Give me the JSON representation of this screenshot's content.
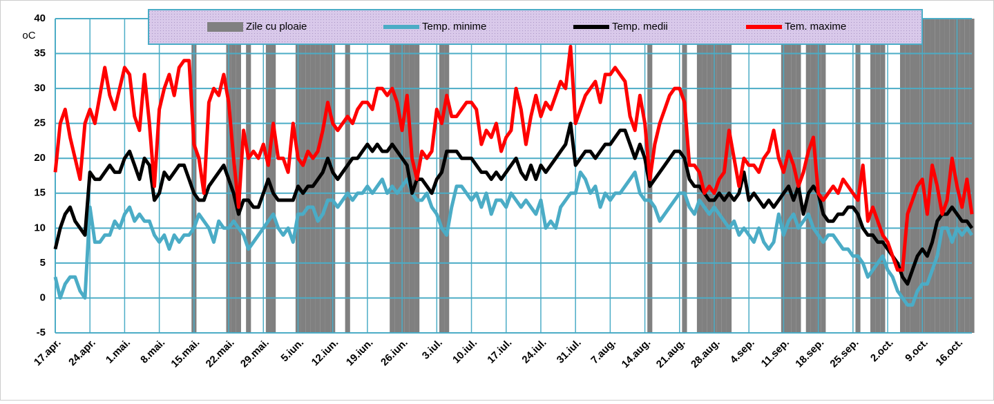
{
  "chart_data": {
    "type": "line",
    "y_label": "oC",
    "ylim": [
      -5,
      40
    ],
    "yticks": [
      -5,
      0,
      5,
      10,
      15,
      20,
      25,
      30,
      35,
      40
    ],
    "grid": true,
    "legend": "top",
    "categories": [
      "17.apr.",
      null,
      null,
      null,
      null,
      null,
      null,
      "24.apr.",
      null,
      null,
      null,
      null,
      null,
      null,
      "1.mai.",
      null,
      null,
      null,
      null,
      null,
      null,
      "8.mai.",
      null,
      null,
      null,
      null,
      null,
      null,
      "15.mai.",
      null,
      null,
      null,
      null,
      null,
      null,
      "22.mai.",
      null,
      null,
      null,
      null,
      null,
      null,
      "29.mai.",
      null,
      null,
      null,
      null,
      null,
      null,
      "5.iun.",
      null,
      null,
      null,
      null,
      null,
      null,
      "12.iun.",
      null,
      null,
      null,
      null,
      null,
      null,
      "19.iun.",
      null,
      null,
      null,
      null,
      null,
      null,
      "26.iun.",
      null,
      null,
      null,
      null,
      null,
      null,
      "3.iul.",
      null,
      null,
      null,
      null,
      null,
      null,
      "10.iul.",
      null,
      null,
      null,
      null,
      null,
      null,
      "17.iul.",
      null,
      null,
      null,
      null,
      null,
      null,
      "24.iul.",
      null,
      null,
      null,
      null,
      null,
      null,
      "31.iul.",
      null,
      null,
      null,
      null,
      null,
      null,
      "7.aug.",
      null,
      null,
      null,
      null,
      null,
      null,
      "14.aug.",
      null,
      null,
      null,
      null,
      null,
      null,
      "21.aug.",
      null,
      null,
      null,
      null,
      null,
      null,
      "28.aug.",
      null,
      null,
      null,
      null,
      null,
      null,
      "4.sep.",
      null,
      null,
      null,
      null,
      null,
      null,
      "11.sep.",
      null,
      null,
      null,
      null,
      null,
      null,
      "18.sep.",
      null,
      null,
      null,
      null,
      null,
      null,
      "25.sep.",
      null,
      null,
      null,
      null,
      null,
      null,
      "2.oct.",
      null,
      null,
      null,
      null,
      null,
      null,
      "9.oct.",
      null,
      null,
      null,
      null,
      null,
      null,
      "16.oct.",
      null,
      null,
      null
    ],
    "series": [
      {
        "name": "Zile cu ploaie",
        "type": "bar",
        "color": "#808080",
        "values": [
          null,
          null,
          null,
          null,
          null,
          null,
          null,
          null,
          null,
          null,
          null,
          null,
          null,
          null,
          null,
          null,
          null,
          null,
          null,
          null,
          null,
          null,
          null,
          null,
          null,
          null,
          null,
          null,
          40,
          null,
          null,
          null,
          null,
          null,
          null,
          40,
          40,
          40,
          null,
          40,
          null,
          null,
          null,
          40,
          40,
          null,
          null,
          null,
          null,
          40,
          40,
          40,
          40,
          40,
          40,
          40,
          40,
          null,
          null,
          40,
          null,
          null,
          null,
          null,
          null,
          null,
          null,
          null,
          40,
          40,
          40,
          40,
          40,
          40,
          null,
          null,
          null,
          null,
          40,
          40,
          null,
          null,
          null,
          null,
          null,
          null,
          null,
          null,
          null,
          null,
          null,
          null,
          null,
          null,
          null,
          null,
          null,
          null,
          null,
          null,
          null,
          null,
          null,
          null,
          null,
          null,
          null,
          null,
          null,
          null,
          null,
          null,
          null,
          null,
          null,
          null,
          null,
          null,
          null,
          null,
          40,
          null,
          null,
          null,
          null,
          null,
          null,
          40,
          null,
          null,
          40,
          40,
          40,
          40,
          40,
          40,
          40,
          null,
          null,
          null,
          null,
          null,
          null,
          null,
          null,
          null,
          null,
          40,
          40,
          40,
          40,
          null,
          40,
          40,
          40,
          40,
          null,
          null,
          null,
          null,
          null,
          null,
          40,
          null,
          null,
          40,
          40,
          40,
          null,
          null,
          null,
          40,
          40,
          40,
          40,
          40,
          40,
          40,
          40,
          40,
          40,
          40,
          40,
          40,
          40,
          40
        ]
      },
      {
        "name": "Temp. minime",
        "type": "line",
        "color": "#4bacc6",
        "values": [
          3,
          0,
          2,
          3,
          3,
          1,
          0,
          13,
          8,
          8,
          9,
          9,
          11,
          10,
          12,
          13,
          11,
          12,
          11,
          11,
          9,
          8,
          9,
          7,
          9,
          8,
          9,
          9,
          10,
          12,
          11,
          10,
          8,
          11,
          10,
          10,
          11,
          10,
          9,
          7,
          8,
          9,
          10,
          11,
          12,
          10,
          9,
          10,
          8,
          12,
          12,
          13,
          13,
          11,
          12,
          14,
          14,
          13,
          14,
          15,
          14,
          15,
          15,
          16,
          15,
          16,
          17,
          15,
          16,
          15,
          16,
          17,
          15,
          14,
          14,
          15,
          13,
          12,
          10,
          9,
          13,
          16,
          16,
          15,
          14,
          15,
          13,
          15,
          12,
          14,
          14,
          13,
          15,
          14,
          13,
          14,
          13,
          12,
          14,
          10,
          11,
          10,
          13,
          14,
          15,
          15,
          18,
          17,
          15,
          16,
          13,
          15,
          14,
          15,
          15,
          16,
          17,
          18,
          15,
          14,
          14,
          13,
          11,
          12,
          13,
          14,
          15,
          15,
          13,
          12,
          14,
          13,
          12,
          13,
          12,
          11,
          10,
          11,
          9,
          10,
          9,
          8,
          10,
          8,
          7,
          8,
          12,
          9,
          11,
          12,
          10,
          11,
          12,
          10,
          9,
          8,
          9,
          9,
          8,
          7,
          7,
          6,
          6,
          5,
          3,
          4,
          5,
          6,
          4,
          3,
          1,
          0,
          -1,
          -1,
          1,
          2,
          2,
          4,
          6,
          10,
          10,
          8,
          10,
          9,
          10,
          9
        ]
      },
      {
        "name": "Temp. medii",
        "type": "line",
        "color": "#000000",
        "values": [
          7,
          10,
          12,
          13,
          11,
          10,
          9,
          18,
          17,
          17,
          18,
          19,
          18,
          18,
          20,
          21,
          19,
          17,
          20,
          19,
          14,
          15,
          18,
          17,
          18,
          19,
          19,
          17,
          15,
          14,
          14,
          16,
          17,
          18,
          19,
          17,
          15,
          12,
          14,
          14,
          13,
          13,
          15,
          17,
          15,
          14,
          14,
          14,
          14,
          16,
          15,
          16,
          16,
          17,
          18,
          20,
          18,
          17,
          18,
          19,
          20,
          20,
          21,
          22,
          21,
          22,
          21,
          21,
          22,
          21,
          20,
          19,
          15,
          17,
          17,
          16,
          15,
          17,
          18,
          21,
          21,
          21,
          20,
          20,
          20,
          19,
          18,
          18,
          17,
          18,
          17,
          18,
          19,
          20,
          18,
          17,
          19,
          17,
          19,
          18,
          19,
          20,
          21,
          22,
          25,
          19,
          20,
          21,
          21,
          20,
          21,
          22,
          22,
          23,
          24,
          24,
          22,
          20,
          22,
          20,
          16,
          17,
          18,
          19,
          20,
          21,
          21,
          20,
          17,
          16,
          16,
          15,
          14,
          14,
          15,
          14,
          15,
          14,
          15,
          18,
          14,
          15,
          14,
          13,
          14,
          13,
          14,
          15,
          16,
          14,
          16,
          12,
          15,
          16,
          15,
          12,
          11,
          11,
          12,
          12,
          13,
          13,
          12,
          10,
          9,
          9,
          8,
          8,
          7,
          6,
          5,
          3,
          2,
          4,
          6,
          7,
          6,
          8,
          11,
          12,
          12,
          13,
          12,
          11,
          11,
          10
        ]
      },
      {
        "name": "Tem. maxime",
        "type": "line",
        "color": "#ff0000",
        "values": [
          18,
          25,
          27,
          23,
          20,
          17,
          25,
          27,
          25,
          29,
          33,
          29,
          27,
          30,
          33,
          32,
          26,
          24,
          32,
          25,
          16,
          27,
          30,
          32,
          29,
          33,
          34,
          34,
          22,
          20,
          15,
          28,
          30,
          29,
          32,
          28,
          20,
          13,
          24,
          20,
          21,
          20,
          22,
          19,
          25,
          20,
          20,
          18,
          25,
          20,
          19,
          21,
          20,
          21,
          24,
          28,
          25,
          24,
          25,
          26,
          25,
          27,
          28,
          28,
          27,
          30,
          30,
          29,
          30,
          28,
          24,
          29,
          20,
          17,
          21,
          20,
          21,
          27,
          25,
          29,
          26,
          26,
          27,
          28,
          28,
          27,
          22,
          24,
          23,
          25,
          21,
          23,
          24,
          30,
          27,
          22,
          26,
          29,
          26,
          28,
          27,
          29,
          31,
          30,
          36,
          25,
          27,
          29,
          30,
          31,
          28,
          32,
          32,
          33,
          32,
          31,
          26,
          24,
          29,
          25,
          17,
          22,
          25,
          27,
          29,
          30,
          30,
          28,
          19,
          19,
          18,
          15,
          16,
          15,
          17,
          18,
          24,
          20,
          16,
          20,
          19,
          19,
          18,
          20,
          21,
          24,
          20,
          18,
          21,
          19,
          16,
          18,
          21,
          23,
          15,
          14,
          15,
          16,
          15,
          17,
          16,
          15,
          14,
          19,
          11,
          13,
          11,
          9,
          8,
          6,
          4,
          4,
          12,
          14,
          16,
          17,
          12,
          19,
          16,
          12,
          14,
          20,
          16,
          13,
          17,
          12
        ]
      }
    ]
  }
}
